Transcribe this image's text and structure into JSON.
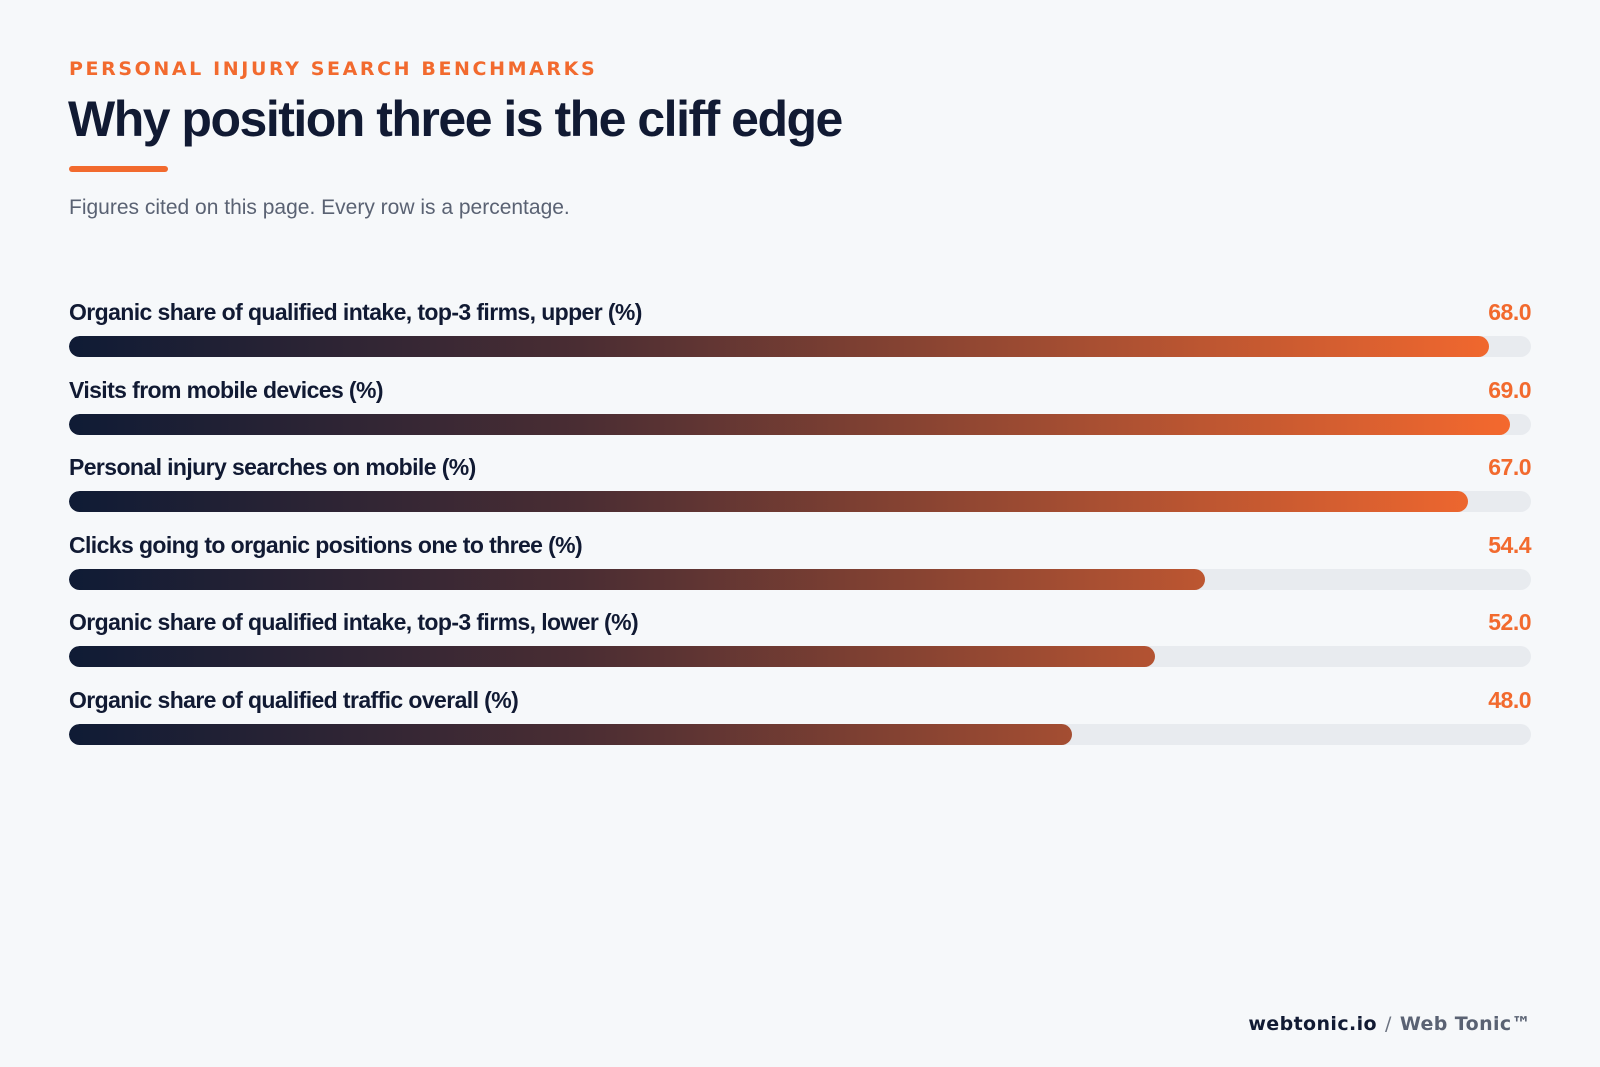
{
  "header": {
    "eyebrow": "PERSONAL INJURY SEARCH BENCHMARKS",
    "title": "Why position three is the cliff edge",
    "subtitle": "Figures cited on this page. Every row is a percentage."
  },
  "colors": {
    "accent": "#f26a2e",
    "ink": "#111a33",
    "track": "#e8ebef",
    "background": "#f6f8fa"
  },
  "chart_data": {
    "type": "bar",
    "orientation": "horizontal",
    "title": "Why position three is the cliff edge",
    "subtitle": "Figures cited on this page. Every row is a percentage.",
    "xlim": [
      0,
      70
    ],
    "grid": false,
    "categories": [
      "Organic share of qualified intake, top-3 firms, upper (%)",
      "Visits from mobile devices (%)",
      "Personal injury searches on mobile (%)",
      "Clicks going to organic positions one to three (%)",
      "Organic share of qualified intake, top-3 firms, lower (%)",
      "Organic share of qualified traffic overall (%)"
    ],
    "values": [
      68.0,
      69.0,
      67.0,
      54.4,
      52.0,
      48.0
    ],
    "value_labels": [
      "68.0",
      "69.0",
      "67.0",
      "54.4",
      "52.0",
      "48.0"
    ]
  },
  "footer": {
    "site": "webtonic.io",
    "separator": "/",
    "brand": "Web Tonic™"
  }
}
